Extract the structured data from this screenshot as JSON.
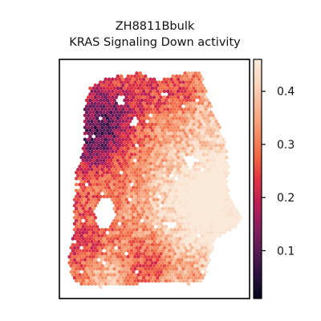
{
  "chart_data": {
    "type": "heatmap",
    "title_lines": [
      "ZH8811Bbulk",
      "KRAS Signaling Down activity"
    ],
    "xlabel": "",
    "ylabel": "",
    "colormap": "rocket",
    "colorbar": {
      "range": [
        0.01,
        0.46
      ],
      "ticks": [
        0.1,
        0.2,
        0.3,
        0.4
      ],
      "tick_labels": [
        "0.1",
        "0.2",
        "0.3",
        "0.4"
      ]
    },
    "axes_ticks_shown": false,
    "value_summary": {
      "low_region": "upper-left (≈0.05–0.2)",
      "high_region": "right-center and bottom strip (≈0.35–0.45)",
      "typical": "≈0.25–0.35"
    }
  },
  "colors": {
    "frame": "#000000",
    "background": "#ffffff",
    "colormap_stops": [
      "#03051a",
      "#2b1141",
      "#591c58",
      "#8b1e5e",
      "#bd1f55",
      "#e13342",
      "#f26a45",
      "#f5936a",
      "#f7b592",
      "#fad7bf",
      "#faebdd"
    ]
  }
}
